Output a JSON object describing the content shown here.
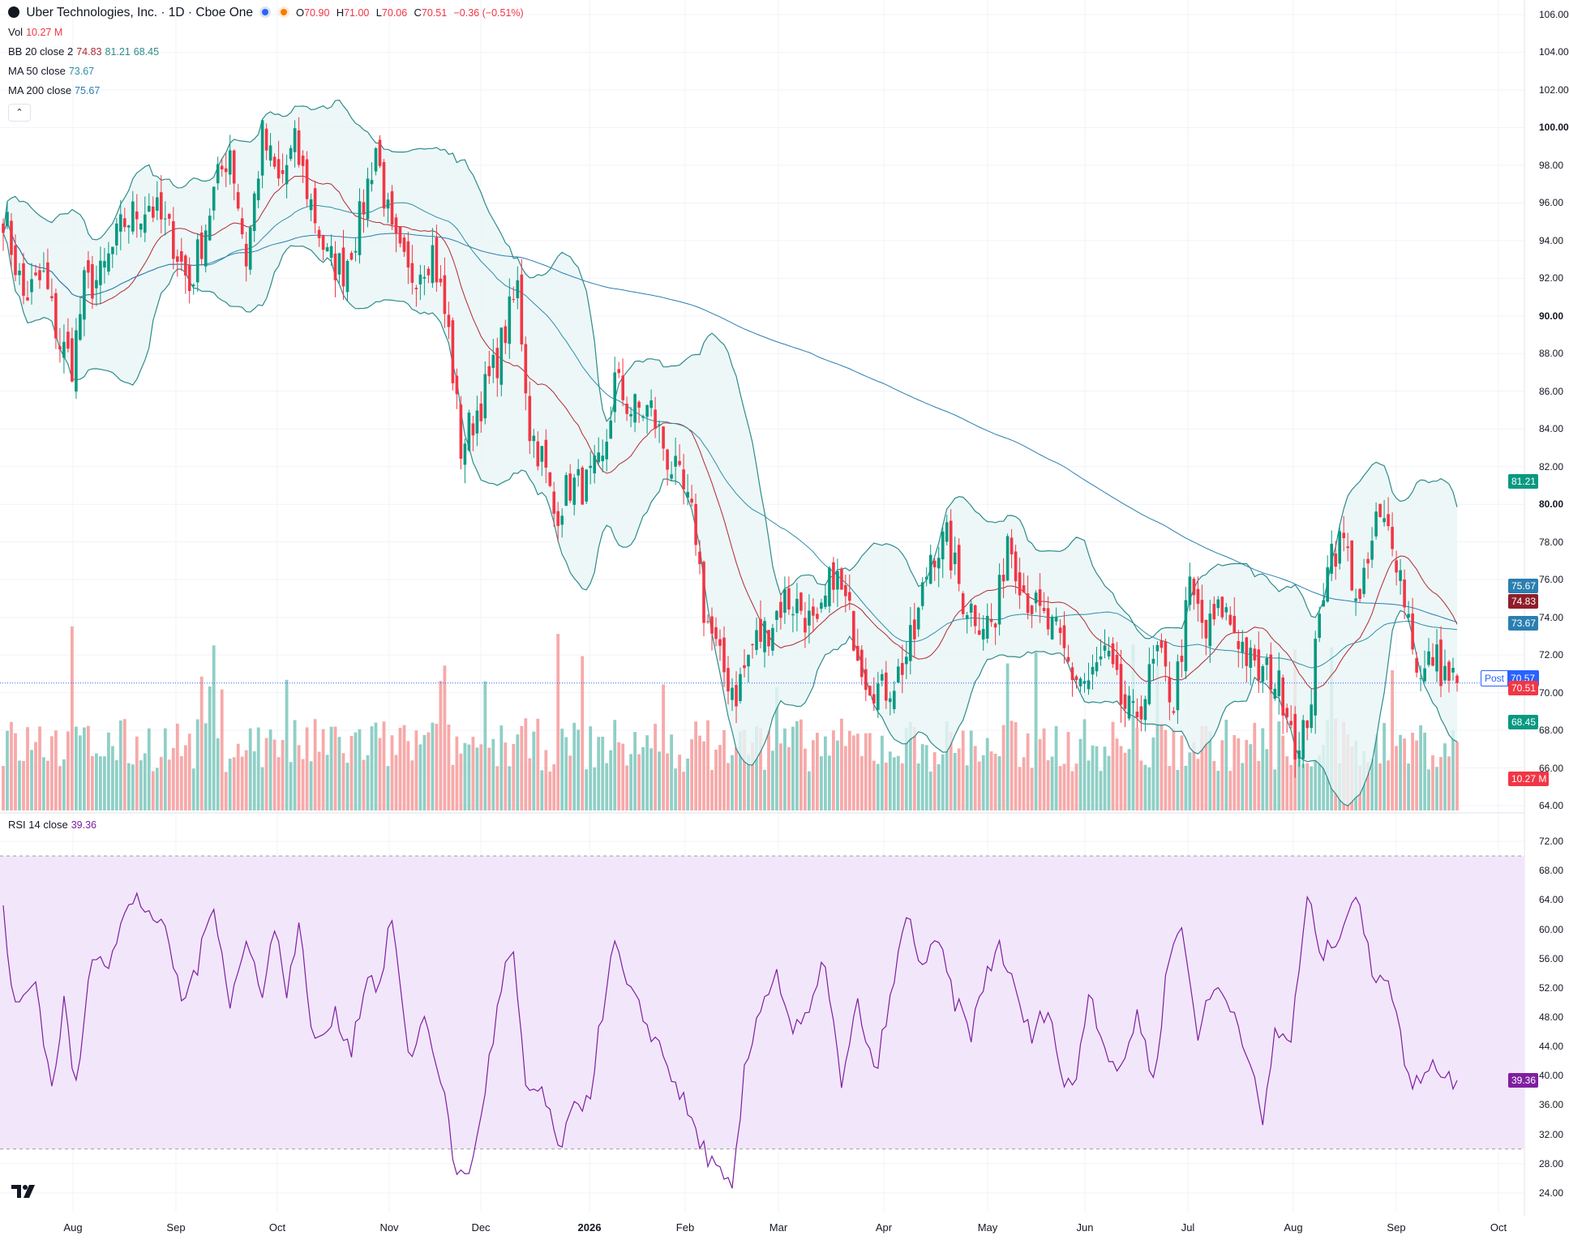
{
  "header": {
    "symbol_name": "Uber Technologies, Inc. · 1D · Cboe One",
    "ohlc": {
      "o_label": "O",
      "o": "70.90",
      "h_label": "H",
      "h": "71.00",
      "l_label": "L",
      "l": "70.06",
      "c_label": "C",
      "c": "70.51",
      "change": "−0.36 (−0.51%)"
    },
    "vol_label": "Vol",
    "vol_value": "10.27 M",
    "bb_label": "BB 20 close 2",
    "bb_basis": "74.83",
    "bb_upper": "81.21",
    "bb_lower": "68.45",
    "ma50_label": "MA 50 close",
    "ma50_value": "73.67",
    "ma200_label": "MA 200 close",
    "ma200_value": "75.67",
    "rsi_label": "RSI 14 close",
    "rsi_value": "39.36"
  },
  "price_badges": {
    "ma200": "75.67",
    "bb_basis": "74.83",
    "ma50": "73.67",
    "post_label": "Post",
    "post": "70.57",
    "last": "70.51",
    "bb_lower": "68.45",
    "bb_upper": "81.21",
    "volume": "10.27 M",
    "rsi": "39.36"
  },
  "colors": {
    "up": "#089981",
    "down": "#f23645",
    "up_vol": "#8fcfc6",
    "down_vol": "#f7a9a9",
    "bb_line": "#2e8b8b",
    "bb_basis": "#b22833",
    "bb_fill": "#e9f5f5",
    "ma50": "#2e8fa8",
    "ma200": "#2a7fb0",
    "rsi_line": "#7e1fa0",
    "rsi_band": "#f2e6fb",
    "post": "#2962ff",
    "last_badge": "#f23645",
    "bb_upper_badge": "#089981",
    "ma_badge": "#2a7fb0",
    "basis_badge": "#8e1e2a",
    "rsi_badge": "#7e1fa0"
  },
  "chart_data": {
    "type": "candlestick",
    "price_axis": {
      "min": 64,
      "max": 106,
      "ticks": [
        "106.00",
        "104.00",
        "102.00",
        "100.00",
        "98.00",
        "96.00",
        "94.00",
        "92.00",
        "90.00",
        "88.00",
        "86.00",
        "84.00",
        "82.00",
        "80.00",
        "78.00",
        "76.00",
        "74.00",
        "72.00",
        "70.00",
        "68.00",
        "66.00",
        "64.00"
      ]
    },
    "rsi_axis": {
      "min": 22,
      "max": 74,
      "ticks": [
        "72.00",
        "68.00",
        "64.00",
        "60.00",
        "56.00",
        "52.00",
        "48.00",
        "44.00",
        "40.00",
        "36.00",
        "32.00",
        "28.00",
        "24.00"
      ],
      "band": [
        30,
        70
      ]
    },
    "x_ticks": [
      "Aug",
      "Sep",
      "Oct",
      "Nov",
      "Dec",
      "2026",
      "Feb",
      "Mar",
      "Apr",
      "May",
      "Jun",
      "Jul",
      "Aug",
      "Sep",
      "Oct"
    ],
    "close_anchors": [
      [
        0,
        95.5
      ],
      [
        5,
        91.0
      ],
      [
        10,
        92.0
      ],
      [
        14,
        88.5
      ],
      [
        17,
        87.5
      ],
      [
        20,
        91.5
      ],
      [
        24,
        92.0
      ],
      [
        30,
        95.0
      ],
      [
        36,
        96.0
      ],
      [
        42,
        94.0
      ],
      [
        46,
        91.5
      ],
      [
        52,
        96.5
      ],
      [
        56,
        99.0
      ],
      [
        60,
        93.0
      ],
      [
        64,
        99.5
      ],
      [
        68,
        97.0
      ],
      [
        72,
        99.0
      ],
      [
        76,
        96.0
      ],
      [
        80,
        93.0
      ],
      [
        84,
        92.5
      ],
      [
        88,
        95.0
      ],
      [
        92,
        99.0
      ],
      [
        96,
        94.0
      ],
      [
        100,
        92.0
      ],
      [
        106,
        93.5
      ],
      [
        110,
        89.0
      ],
      [
        113,
        83.0
      ],
      [
        117,
        85.0
      ],
      [
        121,
        87.0
      ],
      [
        125,
        90.0
      ],
      [
        127,
        91.5
      ],
      [
        130,
        84.0
      ],
      [
        133,
        82.5
      ],
      [
        136,
        79.5
      ],
      [
        140,
        81.0
      ],
      [
        144,
        81.0
      ],
      [
        148,
        82.0
      ],
      [
        151,
        86.5
      ],
      [
        155,
        85.0
      ],
      [
        160,
        85.0
      ],
      [
        164,
        82.5
      ],
      [
        168,
        80.5
      ],
      [
        171,
        78.5
      ],
      [
        173,
        74.5
      ],
      [
        177,
        71.5
      ],
      [
        181,
        70.0
      ],
      [
        185,
        72.5
      ],
      [
        189,
        73.5
      ],
      [
        193,
        75.0
      ],
      [
        197,
        74.5
      ],
      [
        201,
        73.0
      ],
      [
        205,
        76.5
      ],
      [
        209,
        74.0
      ],
      [
        213,
        71.0
      ],
      [
        217,
        70.0
      ],
      [
        221,
        71.0
      ],
      [
        225,
        73.0
      ],
      [
        229,
        77.5
      ],
      [
        233,
        78.0
      ],
      [
        237,
        75.0
      ],
      [
        241,
        74.0
      ],
      [
        245,
        73.5
      ],
      [
        248,
        78.5
      ],
      [
        252,
        75.5
      ],
      [
        256,
        74.0
      ],
      [
        260,
        73.0
      ],
      [
        264,
        71.0
      ],
      [
        268,
        70.5
      ],
      [
        272,
        72.0
      ],
      [
        276,
        69.5
      ],
      [
        279,
        68.5
      ],
      [
        282,
        70.0
      ],
      [
        285,
        72.0
      ],
      [
        289,
        69.5
      ],
      [
        293,
        75.5
      ],
      [
        297,
        73.0
      ],
      [
        301,
        74.5
      ],
      [
        305,
        73.0
      ],
      [
        309,
        71.0
      ],
      [
        313,
        71.0
      ],
      [
        317,
        69.5
      ],
      [
        320,
        66.5
      ],
      [
        323,
        70.0
      ],
      [
        327,
        77.5
      ],
      [
        331,
        78.0
      ],
      [
        335,
        74.5
      ],
      [
        339,
        79.0
      ],
      [
        343,
        78.5
      ],
      [
        347,
        74.0
      ],
      [
        350,
        70.5
      ],
      [
        353,
        72.0
      ],
      [
        356,
        71.0
      ],
      [
        359,
        70.51
      ]
    ],
    "rsi_anchors": [
      [
        0,
        62
      ],
      [
        3,
        49
      ],
      [
        8,
        53
      ],
      [
        12,
        38
      ],
      [
        15,
        50
      ],
      [
        18,
        38
      ],
      [
        22,
        57
      ],
      [
        26,
        56
      ],
      [
        30,
        62
      ],
      [
        33,
        64
      ],
      [
        37,
        62
      ],
      [
        41,
        58
      ],
      [
        44,
        50
      ],
      [
        48,
        55
      ],
      [
        52,
        64
      ],
      [
        56,
        50
      ],
      [
        60,
        58
      ],
      [
        64,
        52
      ],
      [
        67,
        60
      ],
      [
        70,
        52
      ],
      [
        73,
        60
      ],
      [
        77,
        44
      ],
      [
        82,
        48
      ],
      [
        86,
        44
      ],
      [
        90,
        54
      ],
      [
        93,
        52
      ],
      [
        96,
        62
      ],
      [
        100,
        42
      ],
      [
        104,
        48
      ],
      [
        108,
        40
      ],
      [
        112,
        26
      ],
      [
        116,
        28
      ],
      [
        120,
        42
      ],
      [
        124,
        55
      ],
      [
        126,
        56
      ],
      [
        129,
        38
      ],
      [
        133,
        38
      ],
      [
        137,
        30
      ],
      [
        141,
        35
      ],
      [
        145,
        38
      ],
      [
        148,
        49
      ],
      [
        151,
        58
      ],
      [
        154,
        52
      ],
      [
        158,
        48
      ],
      [
        162,
        44
      ],
      [
        166,
        39
      ],
      [
        169,
        35
      ],
      [
        172,
        31
      ],
      [
        176,
        27
      ],
      [
        180,
        24
      ],
      [
        183,
        40
      ],
      [
        187,
        50
      ],
      [
        191,
        54
      ],
      [
        195,
        46
      ],
      [
        199,
        48
      ],
      [
        203,
        56
      ],
      [
        207,
        38
      ],
      [
        211,
        50
      ],
      [
        215,
        40
      ],
      [
        219,
        50
      ],
      [
        223,
        62
      ],
      [
        227,
        55
      ],
      [
        231,
        58
      ],
      [
        235,
        50
      ],
      [
        239,
        46
      ],
      [
        243,
        54
      ],
      [
        246,
        58
      ],
      [
        250,
        51
      ],
      [
        254,
        45
      ],
      [
        258,
        50
      ],
      [
        262,
        38
      ],
      [
        265,
        40
      ],
      [
        268,
        52
      ],
      [
        272,
        44
      ],
      [
        276,
        40
      ],
      [
        280,
        49
      ],
      [
        284,
        39
      ],
      [
        288,
        57
      ],
      [
        291,
        60
      ],
      [
        295,
        46
      ],
      [
        299,
        52
      ],
      [
        303,
        50
      ],
      [
        307,
        44
      ],
      [
        311,
        33
      ],
      [
        314,
        46
      ],
      [
        318,
        45
      ],
      [
        322,
        64
      ],
      [
        326,
        56
      ],
      [
        330,
        60
      ],
      [
        334,
        65
      ],
      [
        338,
        54
      ],
      [
        342,
        54
      ],
      [
        345,
        45
      ],
      [
        348,
        38
      ],
      [
        352,
        42
      ],
      [
        356,
        40
      ],
      [
        359,
        39.36
      ]
    ],
    "count": 360
  }
}
